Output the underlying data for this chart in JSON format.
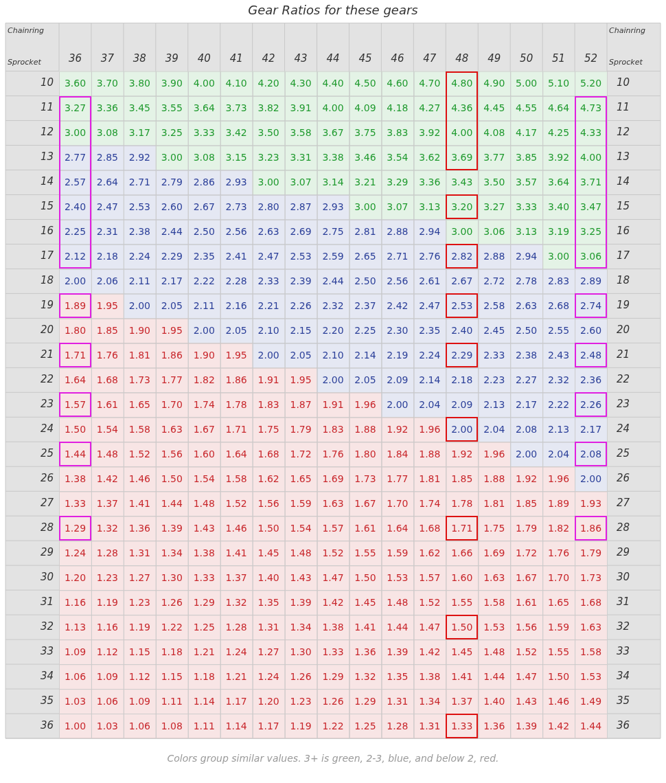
{
  "chart_data": {
    "type": "heatmap",
    "data_labels": true,
    "title": "Gear Ratios for these gears",
    "xlabel": "Chainring",
    "ylabel": "Sprocket",
    "annotations": [
      "Colors group similar values. 3+ is green, 2-3, blue, and below 2, red."
    ],
    "categories": [
      "36",
      "37",
      "38",
      "39",
      "40",
      "41",
      "42",
      "43",
      "44",
      "45",
      "46",
      "47",
      "48",
      "49",
      "50",
      "51",
      "52"
    ],
    "y_categories": [
      "10",
      "11",
      "12",
      "13",
      "14",
      "15",
      "16",
      "17",
      "18",
      "19",
      "20",
      "21",
      "22",
      "23",
      "24",
      "25",
      "26",
      "27",
      "28",
      "29",
      "30",
      "31",
      "32",
      "33",
      "34",
      "35",
      "36"
    ],
    "y2_categories": [
      "10",
      "11",
      "12",
      "13",
      "14",
      "15",
      "16",
      "17",
      "18",
      "19",
      "20",
      "21",
      "22",
      "23",
      "24",
      "25",
      "26",
      "27",
      "28",
      "29",
      "30",
      "31",
      "32",
      "33",
      "34",
      "35",
      "36"
    ],
    "colors": [
      [
        "#1f9a2e",
        "#1f9a2e",
        "#1f9a2e",
        "#1f9a2e",
        "#1f9a2e",
        "#1f9a2e",
        "#1f9a2e",
        "#1f9a2e",
        "#1f9a2e",
        "#1f9a2e",
        "#1f9a2e",
        "#1f9a2e",
        "#1f9a2e",
        "#1f9a2e",
        "#1f9a2e",
        "#1f9a2e",
        "#1f9a2e"
      ],
      [
        "#1f9a2e",
        "#1f9a2e",
        "#1f9a2e",
        "#1f9a2e",
        "#1f9a2e",
        "#1f9a2e",
        "#1f9a2e",
        "#1f9a2e",
        "#1f9a2e",
        "#1f9a2e",
        "#1f9a2e",
        "#1f9a2e",
        "#1f9a2e",
        "#1f9a2e",
        "#1f9a2e",
        "#1f9a2e",
        "#1f9a2e"
      ],
      [
        "#1f9a2e",
        "#1f9a2e",
        "#1f9a2e",
        "#1f9a2e",
        "#1f9a2e",
        "#1f9a2e",
        "#1f9a2e",
        "#1f9a2e",
        "#1f9a2e",
        "#1f9a2e",
        "#1f9a2e",
        "#1f9a2e",
        "#1f9a2e",
        "#1f9a2e",
        "#1f9a2e",
        "#1f9a2e",
        "#1f9a2e"
      ],
      [
        "#2b3f99",
        "#2b3f99",
        "#2b3f99",
        "#1f9a2e",
        "#1f9a2e",
        "#1f9a2e",
        "#1f9a2e",
        "#1f9a2e",
        "#1f9a2e",
        "#1f9a2e",
        "#1f9a2e",
        "#1f9a2e",
        "#1f9a2e",
        "#1f9a2e",
        "#1f9a2e",
        "#1f9a2e",
        "#1f9a2e"
      ],
      [
        "#2b3f99",
        "#2b3f99",
        "#2b3f99",
        "#2b3f99",
        "#2b3f99",
        "#2b3f99",
        "#1f9a2e",
        "#1f9a2e",
        "#1f9a2e",
        "#1f9a2e",
        "#1f9a2e",
        "#1f9a2e",
        "#1f9a2e",
        "#1f9a2e",
        "#1f9a2e",
        "#1f9a2e",
        "#1f9a2e"
      ],
      [
        "#2b3f99",
        "#2b3f99",
        "#2b3f99",
        "#2b3f99",
        "#2b3f99",
        "#2b3f99",
        "#2b3f99",
        "#2b3f99",
        "#2b3f99",
        "#1f9a2e",
        "#1f9a2e",
        "#1f9a2e",
        "#1f9a2e",
        "#1f9a2e",
        "#1f9a2e",
        "#1f9a2e",
        "#1f9a2e"
      ],
      [
        "#2b3f99",
        "#2b3f99",
        "#2b3f99",
        "#2b3f99",
        "#2b3f99",
        "#2b3f99",
        "#2b3f99",
        "#2b3f99",
        "#2b3f99",
        "#2b3f99",
        "#2b3f99",
        "#2b3f99",
        "#1f9a2e",
        "#1f9a2e",
        "#1f9a2e",
        "#1f9a2e",
        "#1f9a2e"
      ],
      [
        "#2b3f99",
        "#2b3f99",
        "#2b3f99",
        "#2b3f99",
        "#2b3f99",
        "#2b3f99",
        "#2b3f99",
        "#2b3f99",
        "#2b3f99",
        "#2b3f99",
        "#2b3f99",
        "#2b3f99",
        "#2b3f99",
        "#2b3f99",
        "#2b3f99",
        "#1f9a2e",
        "#1f9a2e"
      ],
      [
        "#2b3f99",
        "#2b3f99",
        "#2b3f99",
        "#2b3f99",
        "#2b3f99",
        "#2b3f99",
        "#2b3f99",
        "#2b3f99",
        "#2b3f99",
        "#2b3f99",
        "#2b3f99",
        "#2b3f99",
        "#2b3f99",
        "#2b3f99",
        "#2b3f99",
        "#2b3f99",
        "#2b3f99"
      ],
      [
        "#c8262b",
        "#c8262b",
        "#2b3f99",
        "#2b3f99",
        "#2b3f99",
        "#2b3f99",
        "#2b3f99",
        "#2b3f99",
        "#2b3f99",
        "#2b3f99",
        "#2b3f99",
        "#2b3f99",
        "#2b3f99",
        "#2b3f99",
        "#2b3f99",
        "#2b3f99",
        "#2b3f99"
      ],
      [
        "#c8262b",
        "#c8262b",
        "#c8262b",
        "#c8262b",
        "#2b3f99",
        "#2b3f99",
        "#2b3f99",
        "#2b3f99",
        "#2b3f99",
        "#2b3f99",
        "#2b3f99",
        "#2b3f99",
        "#2b3f99",
        "#2b3f99",
        "#2b3f99",
        "#2b3f99",
        "#2b3f99"
      ],
      [
        "#c8262b",
        "#c8262b",
        "#c8262b",
        "#c8262b",
        "#c8262b",
        "#c8262b",
        "#2b3f99",
        "#2b3f99",
        "#2b3f99",
        "#2b3f99",
        "#2b3f99",
        "#2b3f99",
        "#2b3f99",
        "#2b3f99",
        "#2b3f99",
        "#2b3f99",
        "#2b3f99"
      ],
      [
        "#c8262b",
        "#c8262b",
        "#c8262b",
        "#c8262b",
        "#c8262b",
        "#c8262b",
        "#c8262b",
        "#c8262b",
        "#2b3f99",
        "#2b3f99",
        "#2b3f99",
        "#2b3f99",
        "#2b3f99",
        "#2b3f99",
        "#2b3f99",
        "#2b3f99",
        "#2b3f99"
      ],
      [
        "#c8262b",
        "#c8262b",
        "#c8262b",
        "#c8262b",
        "#c8262b",
        "#c8262b",
        "#c8262b",
        "#c8262b",
        "#c8262b",
        "#c8262b",
        "#2b3f99",
        "#2b3f99",
        "#2b3f99",
        "#2b3f99",
        "#2b3f99",
        "#2b3f99",
        "#2b3f99"
      ],
      [
        "#c8262b",
        "#c8262b",
        "#c8262b",
        "#c8262b",
        "#c8262b",
        "#c8262b",
        "#c8262b",
        "#c8262b",
        "#c8262b",
        "#c8262b",
        "#c8262b",
        "#c8262b",
        "#2b3f99",
        "#2b3f99",
        "#2b3f99",
        "#2b3f99",
        "#2b3f99"
      ],
      [
        "#c8262b",
        "#c8262b",
        "#c8262b",
        "#c8262b",
        "#c8262b",
        "#c8262b",
        "#c8262b",
        "#c8262b",
        "#c8262b",
        "#c8262b",
        "#c8262b",
        "#c8262b",
        "#c8262b",
        "#c8262b",
        "#2b3f99",
        "#2b3f99",
        "#2b3f99"
      ],
      [
        "#c8262b",
        "#c8262b",
        "#c8262b",
        "#c8262b",
        "#c8262b",
        "#c8262b",
        "#c8262b",
        "#c8262b",
        "#c8262b",
        "#c8262b",
        "#c8262b",
        "#c8262b",
        "#c8262b",
        "#c8262b",
        "#c8262b",
        "#c8262b",
        "#2b3f99"
      ],
      [
        "#c8262b",
        "#c8262b",
        "#c8262b",
        "#c8262b",
        "#c8262b",
        "#c8262b",
        "#c8262b",
        "#c8262b",
        "#c8262b",
        "#c8262b",
        "#c8262b",
        "#c8262b",
        "#c8262b",
        "#c8262b",
        "#c8262b",
        "#c8262b",
        "#c8262b"
      ],
      [
        "#c8262b",
        "#c8262b",
        "#c8262b",
        "#c8262b",
        "#c8262b",
        "#c8262b",
        "#c8262b",
        "#c8262b",
        "#c8262b",
        "#c8262b",
        "#c8262b",
        "#c8262b",
        "#c8262b",
        "#c8262b",
        "#c8262b",
        "#c8262b",
        "#c8262b"
      ],
      [
        "#c8262b",
        "#c8262b",
        "#c8262b",
        "#c8262b",
        "#c8262b",
        "#c8262b",
        "#c8262b",
        "#c8262b",
        "#c8262b",
        "#c8262b",
        "#c8262b",
        "#c8262b",
        "#c8262b",
        "#c8262b",
        "#c8262b",
        "#c8262b",
        "#c8262b"
      ],
      [
        "#c8262b",
        "#c8262b",
        "#c8262b",
        "#c8262b",
        "#c8262b",
        "#c8262b",
        "#c8262b",
        "#c8262b",
        "#c8262b",
        "#c8262b",
        "#c8262b",
        "#c8262b",
        "#c8262b",
        "#c8262b",
        "#c8262b",
        "#c8262b",
        "#c8262b"
      ],
      [
        "#c8262b",
        "#c8262b",
        "#c8262b",
        "#c8262b",
        "#c8262b",
        "#c8262b",
        "#c8262b",
        "#c8262b",
        "#c8262b",
        "#c8262b",
        "#c8262b",
        "#c8262b",
        "#c8262b",
        "#c8262b",
        "#c8262b",
        "#c8262b",
        "#c8262b"
      ],
      [
        "#c8262b",
        "#c8262b",
        "#c8262b",
        "#c8262b",
        "#c8262b",
        "#c8262b",
        "#c8262b",
        "#c8262b",
        "#c8262b",
        "#c8262b",
        "#c8262b",
        "#c8262b",
        "#c8262b",
        "#c8262b",
        "#c8262b",
        "#c8262b",
        "#c8262b"
      ],
      [
        "#c8262b",
        "#c8262b",
        "#c8262b",
        "#c8262b",
        "#c8262b",
        "#c8262b",
        "#c8262b",
        "#c8262b",
        "#c8262b",
        "#c8262b",
        "#c8262b",
        "#c8262b",
        "#c8262b",
        "#c8262b",
        "#c8262b",
        "#c8262b",
        "#c8262b"
      ],
      [
        "#c8262b",
        "#c8262b",
        "#c8262b",
        "#c8262b",
        "#c8262b",
        "#c8262b",
        "#c8262b",
        "#c8262b",
        "#c8262b",
        "#c8262b",
        "#c8262b",
        "#c8262b",
        "#c8262b",
        "#c8262b",
        "#c8262b",
        "#c8262b",
        "#c8262b"
      ],
      [
        "#c8262b",
        "#c8262b",
        "#c8262b",
        "#c8262b",
        "#c8262b",
        "#c8262b",
        "#c8262b",
        "#c8262b",
        "#c8262b",
        "#c8262b",
        "#c8262b",
        "#c8262b",
        "#c8262b",
        "#c8262b",
        "#c8262b",
        "#c8262b",
        "#c8262b"
      ],
      [
        "#c8262b",
        "#c8262b",
        "#c8262b",
        "#c8262b",
        "#c8262b",
        "#c8262b",
        "#c8262b",
        "#c8262b",
        "#c8262b",
        "#c8262b",
        "#c8262b",
        "#c8262b",
        "#c8262b",
        "#c8262b",
        "#c8262b",
        "#c8262b",
        "#c8262b"
      ]
    ],
    "cells": [
      [
        3.6,
        3.7,
        3.8,
        3.9,
        4.0,
        4.1,
        4.2,
        4.3,
        4.4,
        4.5,
        4.6,
        4.7,
        4.8,
        4.9,
        5.0,
        5.1,
        5.2
      ],
      [
        3.27,
        3.36,
        3.45,
        3.55,
        3.64,
        3.73,
        3.82,
        3.91,
        4.0,
        4.09,
        4.18,
        4.27,
        4.36,
        4.45,
        4.55,
        4.64,
        4.73
      ],
      [
        3.0,
        3.08,
        3.17,
        3.25,
        3.33,
        3.42,
        3.5,
        3.58,
        3.67,
        3.75,
        3.83,
        3.92,
        4.0,
        4.08,
        4.17,
        4.25,
        4.33
      ],
      [
        2.77,
        2.85,
        2.92,
        3.0,
        3.08,
        3.15,
        3.23,
        3.31,
        3.38,
        3.46,
        3.54,
        3.62,
        3.69,
        3.77,
        3.85,
        3.92,
        4.0
      ],
      [
        2.57,
        2.64,
        2.71,
        2.79,
        2.86,
        2.93,
        3.0,
        3.07,
        3.14,
        3.21,
        3.29,
        3.36,
        3.43,
        3.5,
        3.57,
        3.64,
        3.71
      ],
      [
        2.4,
        2.47,
        2.53,
        2.6,
        2.67,
        2.73,
        2.8,
        2.87,
        2.93,
        3.0,
        3.07,
        3.13,
        3.2,
        3.27,
        3.33,
        3.4,
        3.47
      ],
      [
        2.25,
        2.31,
        2.38,
        2.44,
        2.5,
        2.56,
        2.63,
        2.69,
        2.75,
        2.81,
        2.88,
        2.94,
        3.0,
        3.06,
        3.13,
        3.19,
        3.25
      ],
      [
        2.12,
        2.18,
        2.24,
        2.29,
        2.35,
        2.41,
        2.47,
        2.53,
        2.59,
        2.65,
        2.71,
        2.76,
        2.82,
        2.88,
        2.94,
        3.0,
        3.06
      ],
      [
        2.0,
        2.06,
        2.11,
        2.17,
        2.22,
        2.28,
        2.33,
        2.39,
        2.44,
        2.5,
        2.56,
        2.61,
        2.67,
        2.72,
        2.78,
        2.83,
        2.89
      ],
      [
        1.89,
        1.95,
        2.0,
        2.05,
        2.11,
        2.16,
        2.21,
        2.26,
        2.32,
        2.37,
        2.42,
        2.47,
        2.53,
        2.58,
        2.63,
        2.68,
        2.74
      ],
      [
        1.8,
        1.85,
        1.9,
        1.95,
        2.0,
        2.05,
        2.1,
        2.15,
        2.2,
        2.25,
        2.3,
        2.35,
        2.4,
        2.45,
        2.5,
        2.55,
        2.6
      ],
      [
        1.71,
        1.76,
        1.81,
        1.86,
        1.9,
        1.95,
        2.0,
        2.05,
        2.1,
        2.14,
        2.19,
        2.24,
        2.29,
        2.33,
        2.38,
        2.43,
        2.48
      ],
      [
        1.64,
        1.68,
        1.73,
        1.77,
        1.82,
        1.86,
        1.91,
        1.95,
        2.0,
        2.05,
        2.09,
        2.14,
        2.18,
        2.23,
        2.27,
        2.32,
        2.36
      ],
      [
        1.57,
        1.61,
        1.65,
        1.7,
        1.74,
        1.78,
        1.83,
        1.87,
        1.91,
        1.96,
        2.0,
        2.04,
        2.09,
        2.13,
        2.17,
        2.22,
        2.26
      ],
      [
        1.5,
        1.54,
        1.58,
        1.63,
        1.67,
        1.71,
        1.75,
        1.79,
        1.83,
        1.88,
        1.92,
        1.96,
        2.0,
        2.04,
        2.08,
        2.13,
        2.17
      ],
      [
        1.44,
        1.48,
        1.52,
        1.56,
        1.6,
        1.64,
        1.68,
        1.72,
        1.76,
        1.8,
        1.84,
        1.88,
        1.92,
        1.96,
        2.0,
        2.04,
        2.08
      ],
      [
        1.38,
        1.42,
        1.46,
        1.5,
        1.54,
        1.58,
        1.62,
        1.65,
        1.69,
        1.73,
        1.77,
        1.81,
        1.85,
        1.88,
        1.92,
        1.96,
        2.0
      ],
      [
        1.33,
        1.37,
        1.41,
        1.44,
        1.48,
        1.52,
        1.56,
        1.59,
        1.63,
        1.67,
        1.7,
        1.74,
        1.78,
        1.81,
        1.85,
        1.89,
        1.93
      ],
      [
        1.29,
        1.32,
        1.36,
        1.39,
        1.43,
        1.46,
        1.5,
        1.54,
        1.57,
        1.61,
        1.64,
        1.68,
        1.71,
        1.75,
        1.79,
        1.82,
        1.86
      ],
      [
        1.24,
        1.28,
        1.31,
        1.34,
        1.38,
        1.41,
        1.45,
        1.48,
        1.52,
        1.55,
        1.59,
        1.62,
        1.66,
        1.69,
        1.72,
        1.76,
        1.79
      ],
      [
        1.2,
        1.23,
        1.27,
        1.3,
        1.33,
        1.37,
        1.4,
        1.43,
        1.47,
        1.5,
        1.53,
        1.57,
        1.6,
        1.63,
        1.67,
        1.7,
        1.73
      ],
      [
        1.16,
        1.19,
        1.23,
        1.26,
        1.29,
        1.32,
        1.35,
        1.39,
        1.42,
        1.45,
        1.48,
        1.52,
        1.55,
        1.58,
        1.61,
        1.65,
        1.68
      ],
      [
        1.13,
        1.16,
        1.19,
        1.22,
        1.25,
        1.28,
        1.31,
        1.34,
        1.38,
        1.41,
        1.44,
        1.47,
        1.5,
        1.53,
        1.56,
        1.59,
        1.63
      ],
      [
        1.09,
        1.12,
        1.15,
        1.18,
        1.21,
        1.24,
        1.27,
        1.3,
        1.33,
        1.36,
        1.39,
        1.42,
        1.45,
        1.48,
        1.52,
        1.55,
        1.58
      ],
      [
        1.06,
        1.09,
        1.12,
        1.15,
        1.18,
        1.21,
        1.24,
        1.26,
        1.29,
        1.32,
        1.35,
        1.38,
        1.41,
        1.44,
        1.47,
        1.5,
        1.53
      ],
      [
        1.03,
        1.06,
        1.09,
        1.11,
        1.14,
        1.17,
        1.2,
        1.23,
        1.26,
        1.29,
        1.31,
        1.34,
        1.37,
        1.4,
        1.43,
        1.46,
        1.49
      ],
      [
        1.0,
        1.03,
        1.06,
        1.08,
        1.11,
        1.14,
        1.17,
        1.19,
        1.22,
        1.25,
        1.28,
        1.31,
        1.33,
        1.36,
        1.39,
        1.42,
        1.44
      ]
    ],
    "cell_labels": [
      [
        "3.60",
        "3.70",
        "3.80",
        "3.90",
        "4.00",
        "4.10",
        "4.20",
        "4.30",
        "4.40",
        "4.50",
        "4.60",
        "4.70",
        "4.80",
        "4.90",
        "5.00",
        "5.10",
        "5.20"
      ],
      [
        "3.27",
        "3.36",
        "3.45",
        "3.55",
        "3.64",
        "3.73",
        "3.82",
        "3.91",
        "4.00",
        "4.09",
        "4.18",
        "4.27",
        "4.36",
        "4.45",
        "4.55",
        "4.64",
        "4.73"
      ],
      [
        "3.00",
        "3.08",
        "3.17",
        "3.25",
        "3.33",
        "3.42",
        "3.50",
        "3.58",
        "3.67",
        "3.75",
        "3.83",
        "3.92",
        "4.00",
        "4.08",
        "4.17",
        "4.25",
        "4.33"
      ],
      [
        "2.77",
        "2.85",
        "2.92",
        "3.00",
        "3.08",
        "3.15",
        "3.23",
        "3.31",
        "3.38",
        "3.46",
        "3.54",
        "3.62",
        "3.69",
        "3.77",
        "3.85",
        "3.92",
        "4.00"
      ],
      [
        "2.57",
        "2.64",
        "2.71",
        "2.79",
        "2.86",
        "2.93",
        "3.00",
        "3.07",
        "3.14",
        "3.21",
        "3.29",
        "3.36",
        "3.43",
        "3.50",
        "3.57",
        "3.64",
        "3.71"
      ],
      [
        "2.40",
        "2.47",
        "2.53",
        "2.60",
        "2.67",
        "2.73",
        "2.80",
        "2.87",
        "2.93",
        "3.00",
        "3.07",
        "3.13",
        "3.20",
        "3.27",
        "3.33",
        "3.40",
        "3.47"
      ],
      [
        "2.25",
        "2.31",
        "2.38",
        "2.44",
        "2.50",
        "2.56",
        "2.63",
        "2.69",
        "2.75",
        "2.81",
        "2.88",
        "2.94",
        "3.00",
        "3.06",
        "3.13",
        "3.19",
        "3.25"
      ],
      [
        "2.12",
        "2.18",
        "2.24",
        "2.29",
        "2.35",
        "2.41",
        "2.47",
        "2.53",
        "2.59",
        "2.65",
        "2.71",
        "2.76",
        "2.82",
        "2.88",
        "2.94",
        "3.00",
        "3.06"
      ],
      [
        "2.00",
        "2.06",
        "2.11",
        "2.17",
        "2.22",
        "2.28",
        "2.33",
        "2.39",
        "2.44",
        "2.50",
        "2.56",
        "2.61",
        "2.67",
        "2.72",
        "2.78",
        "2.83",
        "2.89"
      ],
      [
        "1.89",
        "1.95",
        "2.00",
        "2.05",
        "2.11",
        "2.16",
        "2.21",
        "2.26",
        "2.32",
        "2.37",
        "2.42",
        "2.47",
        "2.53",
        "2.58",
        "2.63",
        "2.68",
        "2.74"
      ],
      [
        "1.80",
        "1.85",
        "1.90",
        "1.95",
        "2.00",
        "2.05",
        "2.10",
        "2.15",
        "2.20",
        "2.25",
        "2.30",
        "2.35",
        "2.40",
        "2.45",
        "2.50",
        "2.55",
        "2.60"
      ],
      [
        "1.71",
        "1.76",
        "1.81",
        "1.86",
        "1.90",
        "1.95",
        "2.00",
        "2.05",
        "2.10",
        "2.14",
        "2.19",
        "2.24",
        "2.29",
        "2.33",
        "2.38",
        "2.43",
        "2.48"
      ],
      [
        "1.64",
        "1.68",
        "1.73",
        "1.77",
        "1.82",
        "1.86",
        "1.91",
        "1.95",
        "2.00",
        "2.05",
        "2.09",
        "2.14",
        "2.18",
        "2.23",
        "2.27",
        "2.32",
        "2.36"
      ],
      [
        "1.57",
        "1.61",
        "1.65",
        "1.70",
        "1.74",
        "1.78",
        "1.83",
        "1.87",
        "1.91",
        "1.96",
        "2.00",
        "2.04",
        "2.09",
        "2.13",
        "2.17",
        "2.22",
        "2.26"
      ],
      [
        "1.50",
        "1.54",
        "1.58",
        "1.63",
        "1.67",
        "1.71",
        "1.75",
        "1.79",
        "1.83",
        "1.88",
        "1.92",
        "1.96",
        "2.00",
        "2.04",
        "2.08",
        "2.13",
        "2.17"
      ],
      [
        "1.44",
        "1.48",
        "1.52",
        "1.56",
        "1.60",
        "1.64",
        "1.68",
        "1.72",
        "1.76",
        "1.80",
        "1.84",
        "1.88",
        "1.92",
        "1.96",
        "2.00",
        "2.04",
        "2.08"
      ],
      [
        "1.38",
        "1.42",
        "1.46",
        "1.50",
        "1.54",
        "1.58",
        "1.62",
        "1.65",
        "1.69",
        "1.73",
        "1.77",
        "1.81",
        "1.85",
        "1.88",
        "1.92",
        "1.96",
        "2.00"
      ],
      [
        "1.33",
        "1.37",
        "1.41",
        "1.44",
        "1.48",
        "1.52",
        "1.56",
        "1.59",
        "1.63",
        "1.67",
        "1.70",
        "1.74",
        "1.78",
        "1.81",
        "1.85",
        "1.89",
        "1.93"
      ],
      [
        "1.29",
        "1.32",
        "1.36",
        "1.39",
        "1.43",
        "1.46",
        "1.50",
        "1.54",
        "1.57",
        "1.61",
        "1.64",
        "1.68",
        "1.71",
        "1.75",
        "1.79",
        "1.82",
        "1.86"
      ],
      [
        "1.24",
        "1.28",
        "1.31",
        "1.34",
        "1.38",
        "1.41",
        "1.45",
        "1.48",
        "1.52",
        "1.55",
        "1.59",
        "1.62",
        "1.66",
        "1.69",
        "1.72",
        "1.76",
        "1.79"
      ],
      [
        "1.20",
        "1.23",
        "1.27",
        "1.30",
        "1.33",
        "1.37",
        "1.40",
        "1.43",
        "1.47",
        "1.50",
        "1.53",
        "1.57",
        "1.60",
        "1.63",
        "1.67",
        "1.70",
        "1.73"
      ],
      [
        "1.16",
        "1.19",
        "1.23",
        "1.26",
        "1.29",
        "1.32",
        "1.35",
        "1.39",
        "1.42",
        "1.45",
        "1.48",
        "1.52",
        "1.55",
        "1.58",
        "1.61",
        "1.65",
        "1.68"
      ],
      [
        "1.13",
        "1.16",
        "1.19",
        "1.22",
        "1.25",
        "1.28",
        "1.31",
        "1.34",
        "1.38",
        "1.41",
        "1.44",
        "1.47",
        "1.50",
        "1.53",
        "1.56",
        "1.59",
        "1.63"
      ],
      [
        "1.09",
        "1.12",
        "1.15",
        "1.18",
        "1.21",
        "1.24",
        "1.27",
        "1.30",
        "1.33",
        "1.36",
        "1.39",
        "1.42",
        "1.45",
        "1.48",
        "1.52",
        "1.55",
        "1.58"
      ],
      [
        "1.06",
        "1.09",
        "1.12",
        "1.15",
        "1.18",
        "1.21",
        "1.24",
        "1.26",
        "1.29",
        "1.32",
        "1.35",
        "1.38",
        "1.41",
        "1.44",
        "1.47",
        "1.50",
        "1.53"
      ],
      [
        "1.03",
        "1.06",
        "1.09",
        "1.11",
        "1.14",
        "1.17",
        "1.20",
        "1.23",
        "1.26",
        "1.29",
        "1.31",
        "1.34",
        "1.37",
        "1.40",
        "1.43",
        "1.46",
        "1.49"
      ],
      [
        "1.00",
        "1.03",
        "1.06",
        "1.08",
        "1.11",
        "1.14",
        "1.17",
        "1.19",
        "1.22",
        "1.25",
        "1.28",
        "1.31",
        "1.33",
        "1.36",
        "1.39",
        "1.42",
        "1.44"
      ]
    ]
  }
}
